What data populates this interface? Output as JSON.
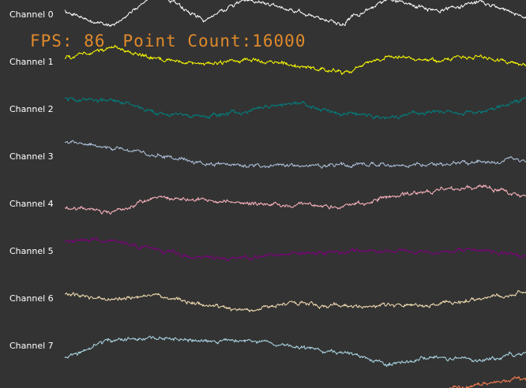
{
  "overlay": {
    "fps_label": "FPS:",
    "fps_value": "86",
    "point_count_label": "Point Count:",
    "point_count_value": "16000",
    "color": "#e08a2c"
  },
  "chart_data": {
    "type": "line",
    "background": "#333333",
    "grid": false,
    "x_range": [
      0,
      1999
    ],
    "series": [
      {
        "name": "Channel 0",
        "color": "#ffffff",
        "trend": [
          0.2,
          -0.9,
          1.5,
          -0.4,
          1.1,
          0.2,
          -0.6,
          1.0,
          0.3,
          0.9,
          -0.2
        ]
      },
      {
        "name": "Channel 1",
        "color": "#ffff00",
        "trend": [
          0.2,
          1.0,
          0.2,
          -0.2,
          0.1,
          -0.3,
          -0.8,
          0.4,
          0.1,
          0.3,
          -0.2
        ]
      },
      {
        "name": "Channel 2",
        "color": "#008080",
        "trend": [
          0.7,
          0.6,
          -0.3,
          -0.6,
          -0.1,
          0.4,
          -0.3,
          -0.6,
          -0.2,
          -0.3,
          0.7
        ]
      },
      {
        "name": "Channel 3",
        "color": "#b0c4de",
        "trend": [
          1.0,
          0.6,
          0.1,
          -0.5,
          -0.7,
          -0.6,
          -0.7,
          -0.6,
          -0.6,
          -0.4,
          -0.3
        ]
      },
      {
        "name": "Channel 4",
        "color": "#ffb6c1",
        "trend": [
          -0.2,
          -0.7,
          0.4,
          0.2,
          0.0,
          -0.1,
          -0.3,
          0.4,
          0.9,
          1.2,
          0.5
        ]
      },
      {
        "name": "Channel 5",
        "color": "#800080",
        "trend": [
          0.7,
          0.7,
          0.1,
          -0.5,
          -0.5,
          -0.1,
          -0.1,
          0.0,
          -0.1,
          0.1,
          -0.4
        ]
      },
      {
        "name": "Channel 6",
        "color": "#f5deb3",
        "trend": [
          0.3,
          -0.1,
          0.2,
          -0.5,
          -0.9,
          -0.3,
          -0.6,
          -0.5,
          -0.5,
          -0.1,
          0.5
        ]
      },
      {
        "name": "Channel 7",
        "color": "#add8e6",
        "trend": [
          -0.9,
          0.4,
          0.5,
          0.3,
          0.3,
          -0.1,
          -0.5,
          -1.3,
          -0.8,
          -1.1,
          -0.5
        ]
      },
      {
        "name": "",
        "color": "#ff7f50",
        "trend": [
          0,
          0,
          0,
          0,
          0,
          0,
          0,
          0,
          0,
          0.6,
          1.0
        ]
      }
    ]
  }
}
